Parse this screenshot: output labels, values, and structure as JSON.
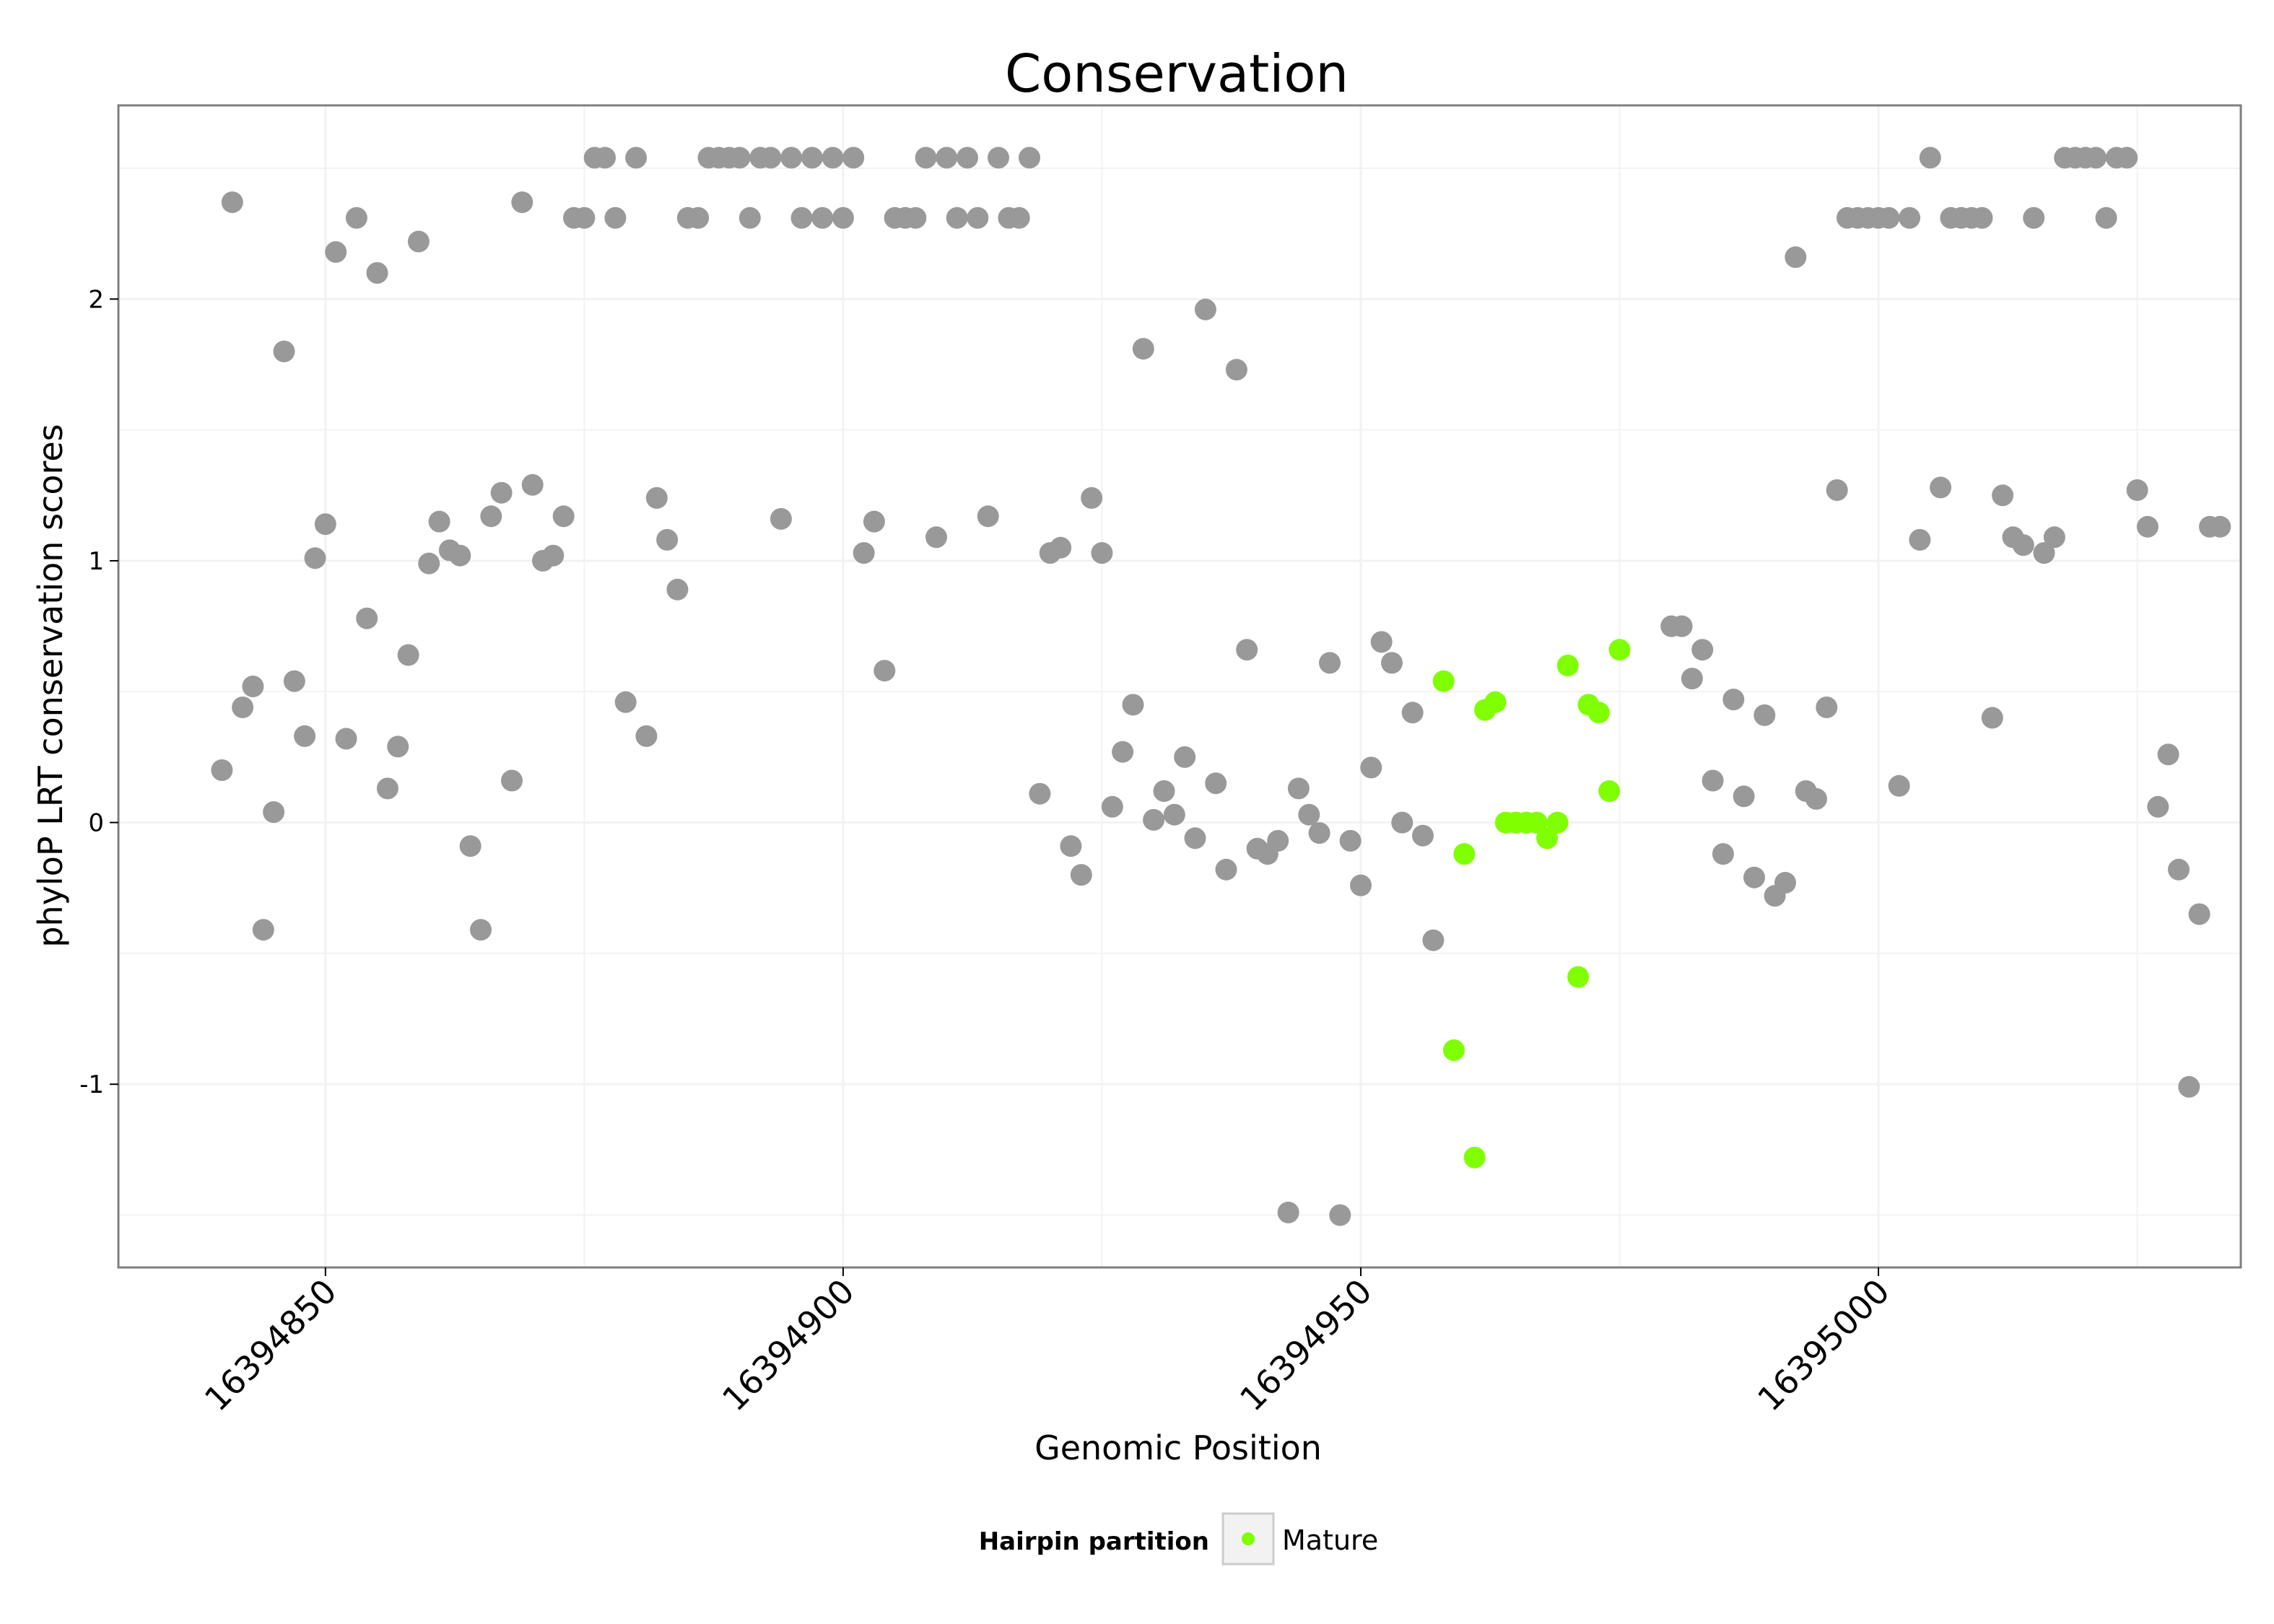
{
  "chart_data": {
    "type": "scatter",
    "title": "Conservation",
    "xlabel": "Genomic Position",
    "ylabel": "phyloP LRT conservation scores",
    "xlim": [
      16394830,
      16395035
    ],
    "ylim": [
      -1.7,
      2.74
    ],
    "x_ticks": [
      16394850,
      16394900,
      16394950,
      16395000
    ],
    "x_tick_labels": [
      "16394850",
      "16394900",
      "16394950",
      "16395000"
    ],
    "y_ticks": [
      -1,
      0,
      1,
      2
    ],
    "y_tick_labels": [
      "-1",
      "0",
      "1",
      "2"
    ],
    "grid": true,
    "legend": {
      "title": "Hairpin partition",
      "position": "bottom",
      "entries": [
        "Mature"
      ]
    },
    "colors": {
      "other": "#999999",
      "mature": "#7FFF00",
      "panel_border": "#7f7f7f",
      "grid": "#f2f2f2"
    },
    "series": [
      {
        "key": "other",
        "color": "#999999",
        "points": [
          [
            16394840,
            0.2
          ],
          [
            16394841,
            2.37
          ],
          [
            16394842,
            0.44
          ],
          [
            16394843,
            0.52
          ],
          [
            16394844,
            -0.41
          ],
          [
            16394845,
            0.04
          ],
          [
            16394846,
            1.8
          ],
          [
            16394847,
            0.54
          ],
          [
            16394848,
            0.33
          ],
          [
            16394849,
            1.01
          ],
          [
            16394850,
            1.14
          ],
          [
            16394851,
            2.18
          ],
          [
            16394852,
            0.32
          ],
          [
            16394853,
            2.31
          ],
          [
            16394854,
            0.78
          ],
          [
            16394855,
            2.1
          ],
          [
            16394856,
            0.13
          ],
          [
            16394857,
            0.29
          ],
          [
            16394858,
            0.64
          ],
          [
            16394859,
            2.22
          ],
          [
            16394860,
            0.99
          ],
          [
            16394861,
            1.15
          ],
          [
            16394862,
            1.04
          ],
          [
            16394863,
            1.02
          ],
          [
            16394864,
            -0.09
          ],
          [
            16394865,
            -0.41
          ],
          [
            16394866,
            1.17
          ],
          [
            16394867,
            1.26
          ],
          [
            16394868,
            0.16
          ],
          [
            16394869,
            2.37
          ],
          [
            16394870,
            1.29
          ],
          [
            16394871,
            1.0
          ],
          [
            16394872,
            1.02
          ],
          [
            16394873,
            1.17
          ],
          [
            16394874,
            2.31
          ],
          [
            16394875,
            2.31
          ],
          [
            16394876,
            2.54
          ],
          [
            16394877,
            2.54
          ],
          [
            16394878,
            2.31
          ],
          [
            16394879,
            0.46
          ],
          [
            16394880,
            2.54
          ],
          [
            16394881,
            0.33
          ],
          [
            16394882,
            1.24
          ],
          [
            16394883,
            1.08
          ],
          [
            16394884,
            0.89
          ],
          [
            16394885,
            2.31
          ],
          [
            16394886,
            2.31
          ],
          [
            16394887,
            2.54
          ],
          [
            16394888,
            2.54
          ],
          [
            16394889,
            2.54
          ],
          [
            16394890,
            2.54
          ],
          [
            16394891,
            2.31
          ],
          [
            16394892,
            2.54
          ],
          [
            16394893,
            2.54
          ],
          [
            16394894,
            1.16
          ],
          [
            16394895,
            2.54
          ],
          [
            16394896,
            2.31
          ],
          [
            16394897,
            2.54
          ],
          [
            16394898,
            2.31
          ],
          [
            16394899,
            2.54
          ],
          [
            16394900,
            2.31
          ],
          [
            16394901,
            2.54
          ],
          [
            16394902,
            1.03
          ],
          [
            16394903,
            1.15
          ],
          [
            16394904,
            0.58
          ],
          [
            16394905,
            2.31
          ],
          [
            16394906,
            2.31
          ],
          [
            16394907,
            2.31
          ],
          [
            16394908,
            2.54
          ],
          [
            16394909,
            1.09
          ],
          [
            16394910,
            2.54
          ],
          [
            16394911,
            2.31
          ],
          [
            16394912,
            2.54
          ],
          [
            16394913,
            2.31
          ],
          [
            16394914,
            1.17
          ],
          [
            16394915,
            2.54
          ],
          [
            16394916,
            2.31
          ],
          [
            16394917,
            2.31
          ],
          [
            16394918,
            2.54
          ],
          [
            16394919,
            0.11
          ],
          [
            16394920,
            1.03
          ],
          [
            16394921,
            1.05
          ],
          [
            16394922,
            -0.09
          ],
          [
            16394923,
            -0.2
          ],
          [
            16394924,
            1.24
          ],
          [
            16394925,
            1.03
          ],
          [
            16394926,
            0.06
          ],
          [
            16394927,
            0.27
          ],
          [
            16394928,
            0.45
          ],
          [
            16394929,
            1.81
          ],
          [
            16394930,
            0.01
          ],
          [
            16394931,
            0.12
          ],
          [
            16394932,
            0.03
          ],
          [
            16394933,
            0.25
          ],
          [
            16394934,
            -0.06
          ],
          [
            16394935,
            1.96
          ],
          [
            16394936,
            0.15
          ],
          [
            16394937,
            -0.18
          ],
          [
            16394938,
            1.73
          ],
          [
            16394939,
            0.66
          ],
          [
            16394940,
            -0.1
          ],
          [
            16394941,
            -0.12
          ],
          [
            16394942,
            -0.07
          ],
          [
            16394943,
            -1.49
          ],
          [
            16394944,
            0.13
          ],
          [
            16394945,
            0.03
          ],
          [
            16394946,
            -0.04
          ],
          [
            16394947,
            0.61
          ],
          [
            16394948,
            -1.5
          ],
          [
            16394949,
            -0.07
          ],
          [
            16394950,
            -0.24
          ],
          [
            16394951,
            0.21
          ],
          [
            16394952,
            0.69
          ],
          [
            16394953,
            0.61
          ],
          [
            16394954,
            0.0
          ],
          [
            16394955,
            0.42
          ],
          [
            16394956,
            -0.05
          ],
          [
            16394957,
            -0.45
          ],
          [
            16394980,
            0.75
          ],
          [
            16394981,
            0.75
          ],
          [
            16394982,
            0.55
          ],
          [
            16394983,
            0.66
          ],
          [
            16394984,
            0.16
          ],
          [
            16394985,
            -0.12
          ],
          [
            16394986,
            0.47
          ],
          [
            16394987,
            0.1
          ],
          [
            16394988,
            -0.21
          ],
          [
            16394989,
            0.41
          ],
          [
            16394990,
            -0.28
          ],
          [
            16394991,
            -0.23
          ],
          [
            16394992,
            2.16
          ],
          [
            16394993,
            0.12
          ],
          [
            16394994,
            0.09
          ],
          [
            16394995,
            0.44
          ],
          [
            16394996,
            1.27
          ],
          [
            16394997,
            2.31
          ],
          [
            16394998,
            2.31
          ],
          [
            16394999,
            2.31
          ],
          [
            16395000,
            2.31
          ],
          [
            16395001,
            2.31
          ],
          [
            16395002,
            0.14
          ],
          [
            16395003,
            2.31
          ],
          [
            16395004,
            1.08
          ],
          [
            16395005,
            2.54
          ],
          [
            16395006,
            1.28
          ],
          [
            16395007,
            2.31
          ],
          [
            16395008,
            2.31
          ],
          [
            16395009,
            2.31
          ],
          [
            16395010,
            2.31
          ],
          [
            16395011,
            0.4
          ],
          [
            16395012,
            1.25
          ],
          [
            16395013,
            1.09
          ],
          [
            16395014,
            1.06
          ],
          [
            16395015,
            2.31
          ],
          [
            16395016,
            1.03
          ],
          [
            16395017,
            1.09
          ],
          [
            16395018,
            2.54
          ],
          [
            16395019,
            2.54
          ],
          [
            16395020,
            2.54
          ],
          [
            16395021,
            2.54
          ],
          [
            16395022,
            2.31
          ],
          [
            16395023,
            2.54
          ],
          [
            16395024,
            2.54
          ],
          [
            16395025,
            1.27
          ],
          [
            16395026,
            1.13
          ],
          [
            16395027,
            0.06
          ],
          [
            16395028,
            0.26
          ],
          [
            16395029,
            -0.18
          ],
          [
            16395030,
            -1.01
          ],
          [
            16395031,
            -0.35
          ],
          [
            16395032,
            1.13
          ],
          [
            16395033,
            1.13
          ]
        ]
      },
      {
        "key": "mature",
        "name": "Mature",
        "color": "#7FFF00",
        "points": [
          [
            16394958,
            0.54
          ],
          [
            16394959,
            -0.87
          ],
          [
            16394960,
            -0.12
          ],
          [
            16394961,
            -1.28
          ],
          [
            16394962,
            0.43
          ],
          [
            16394963,
            0.46
          ],
          [
            16394964,
            0.0
          ],
          [
            16394965,
            0.0
          ],
          [
            16394966,
            0.0
          ],
          [
            16394967,
            0.0
          ],
          [
            16394968,
            -0.06
          ],
          [
            16394969,
            0.0
          ],
          [
            16394970,
            0.6
          ],
          [
            16394971,
            -0.59
          ],
          [
            16394972,
            0.45
          ],
          [
            16394973,
            0.42
          ],
          [
            16394974,
            0.12
          ],
          [
            16394975,
            0.66
          ]
        ]
      }
    ]
  }
}
